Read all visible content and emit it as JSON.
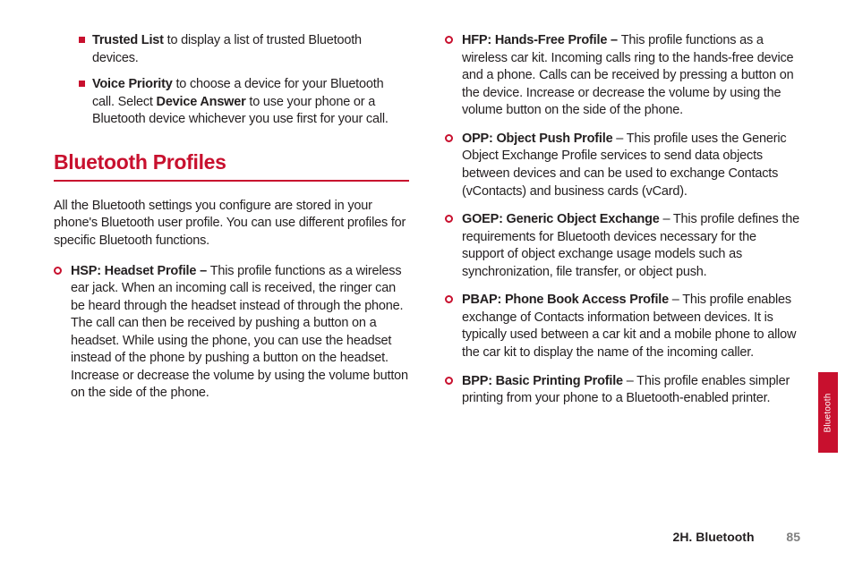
{
  "left": {
    "square_items": [
      {
        "bold": "Trusted List",
        "rest": " to display a list of trusted Bluetooth devices."
      },
      {
        "bold": "Voice Priority",
        "rest": " to choose a device for your Bluetooth call. Select ",
        "bold2": "Device Answer",
        "rest2": " to use your phone or a Bluetooth device whichever you use first for your call."
      }
    ],
    "heading": "Bluetooth Profiles",
    "intro": "All the Bluetooth settings you configure are stored in your phone's Bluetooth user profile. You can use different profiles for specific Bluetooth functions.",
    "circle_items": [
      {
        "bold": "HSP: Headset Profile – ",
        "rest": "This profile functions as a wireless ear jack. When an incoming call is received, the ringer can be heard through the headset instead of through the phone. The call can then be received by pushing a button on a headset. While using the phone, you can use the headset instead of the phone by pushing a button on the headset. Increase or decrease the volume by using the volume button on the side of the phone."
      }
    ]
  },
  "right": {
    "circle_items": [
      {
        "bold": "HFP: Hands-Free Profile – ",
        "rest": "This profile functions as a wireless car kit. Incoming calls ring to the hands-free device and a phone. Calls can be received by pressing a button on the device. Increase or decrease the volume by using the volume button on the side of the phone."
      },
      {
        "bold": "OPP: Object Push Profile",
        "rest": " – This profile uses the Generic Object Exchange Profile services to send data objects between devices and can be used to exchange Contacts (vContacts) and business cards (vCard)."
      },
      {
        "bold": "GOEP: Generic Object Exchange",
        "rest": " – This profile defines the requirements for Bluetooth devices necessary for the support of object exchange usage models such as synchronization, file transfer, or object push."
      },
      {
        "bold": "PBAP: Phone Book Access Profile",
        "rest": " – This profile enables exchange of Contacts information between devices. It is typically used between a car kit and a mobile phone to allow the car kit to display the name of the incoming caller."
      },
      {
        "bold": "BPP: Basic Printing Profile",
        "rest": " – This profile enables simpler printing from your phone to a Bluetooth-enabled printer."
      }
    ]
  },
  "side_tab": "Bluetooth",
  "footer_section": "2H. Bluetooth",
  "footer_page": "85"
}
